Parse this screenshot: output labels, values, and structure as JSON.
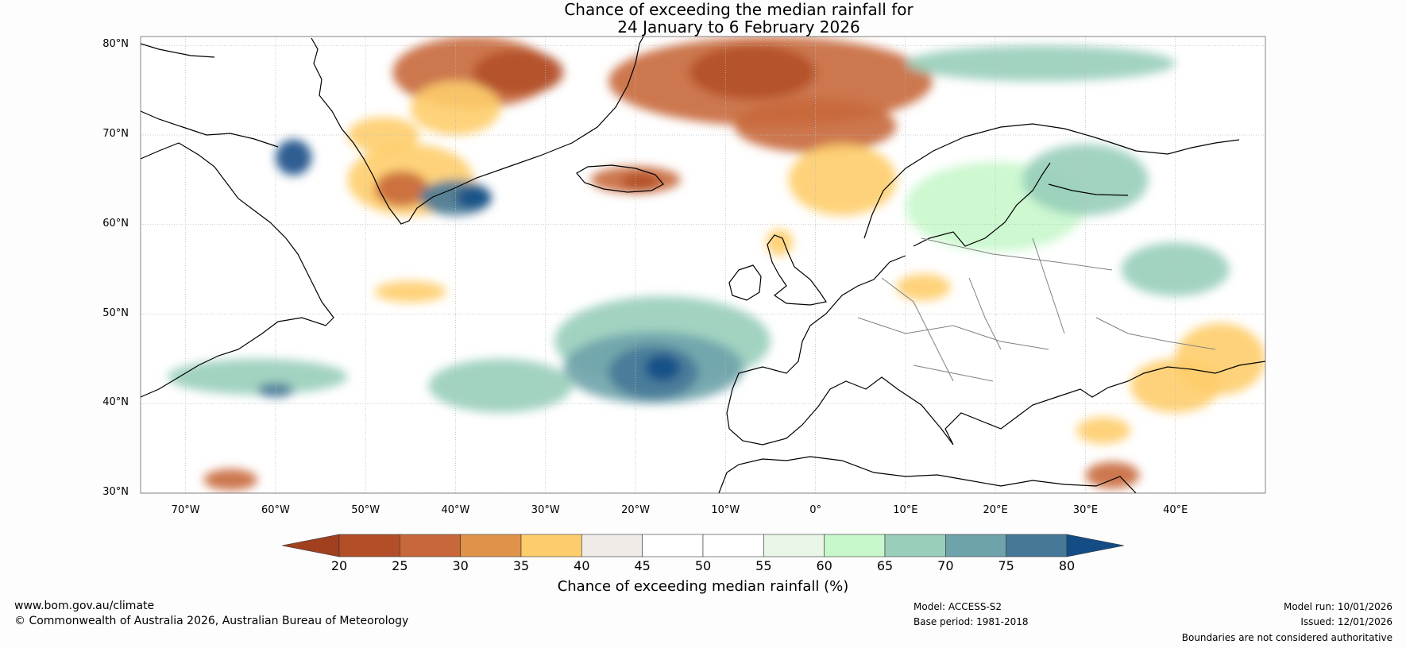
{
  "title_line1": "Chance of exceeding the median rainfall for",
  "title_line2": "24 January to 6 February 2026",
  "map": {
    "extent": {
      "lon_min": -75,
      "lon_max": 50,
      "lat_min": 30,
      "lat_max": 81
    },
    "lat_labels": [
      "80°N",
      "70°N",
      "60°N",
      "50°N",
      "40°N",
      "30°N"
    ],
    "lat_values": [
      80,
      70,
      60,
      50,
      40,
      30
    ],
    "lon_labels": [
      "70°W",
      "60°W",
      "50°W",
      "40°W",
      "30°W",
      "20°W",
      "10°W",
      "0°",
      "10°E",
      "20°E",
      "30°E",
      "40°E"
    ],
    "lon_values": [
      -70,
      -60,
      -50,
      -40,
      -30,
      -20,
      -10,
      0,
      10,
      20,
      30,
      40
    ],
    "land_outline_color": "#000000",
    "border_color": "#808080",
    "gridline_color": "#bbbbbb"
  },
  "colorbar": {
    "ticks": [
      "20",
      "25",
      "30",
      "35",
      "40",
      "45",
      "50",
      "55",
      "60",
      "65",
      "70",
      "75",
      "80"
    ],
    "colors": [
      "#a0401f",
      "#b24f28",
      "#c8683a",
      "#e09348",
      "#fecd6b",
      "#f0ebe6",
      "#ffffff",
      "#ffffff",
      "#e8f7e8",
      "#c8f7cb",
      "#98ceba",
      "#6fa3ab",
      "#467998",
      "#144d86"
    ],
    "label": "Chance of exceeding median rainfall (%)"
  },
  "footer": {
    "website": "www.bom.gov.au/climate",
    "copyright": "© Commonwealth of Australia 2026, Australian Bureau of Meteorology",
    "model": "Model: ACCESS-S2",
    "base_period": "Base period: 1981-2018",
    "model_run": "Model run: 10/01/2026",
    "issued": "Issued: 12/01/2026",
    "disclaimer": "Boundaries are not considered authoritative"
  },
  "anomalies": [
    {
      "lon": -38,
      "lat": 77,
      "rx": 9,
      "ry": 4,
      "v": 30
    },
    {
      "lon": -33,
      "lat": 77,
      "rx": 5,
      "ry": 2.5,
      "v": 25
    },
    {
      "lon": -40,
      "lat": 73,
      "rx": 5,
      "ry": 3,
      "v": 35
    },
    {
      "lon": -5,
      "lat": 76,
      "rx": 18,
      "ry": 5,
      "v": 30
    },
    {
      "lon": -7,
      "lat": 77,
      "rx": 7,
      "ry": 3,
      "v": 25
    },
    {
      "lon": 0,
      "lat": 71,
      "rx": 9,
      "ry": 3,
      "v": 30
    },
    {
      "lon": 3,
      "lat": 65,
      "rx": 6,
      "ry": 4,
      "v": 35
    },
    {
      "lon": -45,
      "lat": 65,
      "rx": 7,
      "ry": 4,
      "v": 35
    },
    {
      "lon": -46,
      "lat": 64,
      "rx": 3,
      "ry": 2,
      "v": 30
    },
    {
      "lon": -20,
      "lat": 65,
      "rx": 5,
      "ry": 1.5,
      "v": 30
    },
    {
      "lon": -19.5,
      "lat": 64.8,
      "rx": 2,
      "ry": 1,
      "v": 25
    },
    {
      "lon": -4,
      "lat": 58,
      "rx": 1.5,
      "ry": 1.5,
      "v": 35
    },
    {
      "lon": -48,
      "lat": 70,
      "rx": 4,
      "ry": 2,
      "v": 35
    },
    {
      "lon": -40,
      "lat": 63,
      "rx": 4,
      "ry": 2,
      "v": 75
    },
    {
      "lon": -38,
      "lat": 63,
      "rx": 2,
      "ry": 1.2,
      "v": 80
    },
    {
      "lon": -58,
      "lat": 67.5,
      "rx": 2,
      "ry": 2,
      "v": 80
    },
    {
      "lon": -17,
      "lat": 47,
      "rx": 12,
      "ry": 5,
      "v": 65
    },
    {
      "lon": -18,
      "lat": 44,
      "rx": 10,
      "ry": 4,
      "v": 70
    },
    {
      "lon": -18,
      "lat": 43.5,
      "rx": 5,
      "ry": 3,
      "v": 75
    },
    {
      "lon": -17,
      "lat": 44,
      "rx": 2,
      "ry": 1.5,
      "v": 80
    },
    {
      "lon": -35,
      "lat": 42,
      "rx": 8,
      "ry": 3,
      "v": 65
    },
    {
      "lon": -62,
      "lat": 43,
      "rx": 10,
      "ry": 2,
      "v": 65
    },
    {
      "lon": -60,
      "lat": 41.5,
      "rx": 2,
      "ry": 0.8,
      "v": 75
    },
    {
      "lon": 20,
      "lat": 62,
      "rx": 10,
      "ry": 5,
      "v": 60
    },
    {
      "lon": 30,
      "lat": 65,
      "rx": 7,
      "ry": 4,
      "v": 65
    },
    {
      "lon": 40,
      "lat": 55,
      "rx": 6,
      "ry": 3,
      "v": 65
    },
    {
      "lon": 25,
      "lat": 78,
      "rx": 15,
      "ry": 2,
      "v": 65
    },
    {
      "lon": 45,
      "lat": 45,
      "rx": 5,
      "ry": 4,
      "v": 35
    },
    {
      "lon": 40,
      "lat": 42,
      "rx": 5,
      "ry": 3,
      "v": 35
    },
    {
      "lon": 32,
      "lat": 37,
      "rx": 3,
      "ry": 1.5,
      "v": 35
    },
    {
      "lon": 12,
      "lat": 53,
      "rx": 3,
      "ry": 1.5,
      "v": 35
    },
    {
      "lon": -45,
      "lat": 52.5,
      "rx": 4,
      "ry": 1.2,
      "v": 35
    },
    {
      "lon": -65,
      "lat": 31.5,
      "rx": 3,
      "ry": 1.2,
      "v": 30
    },
    {
      "lon": 33,
      "lat": 32,
      "rx": 3,
      "ry": 1.5,
      "v": 30
    }
  ]
}
